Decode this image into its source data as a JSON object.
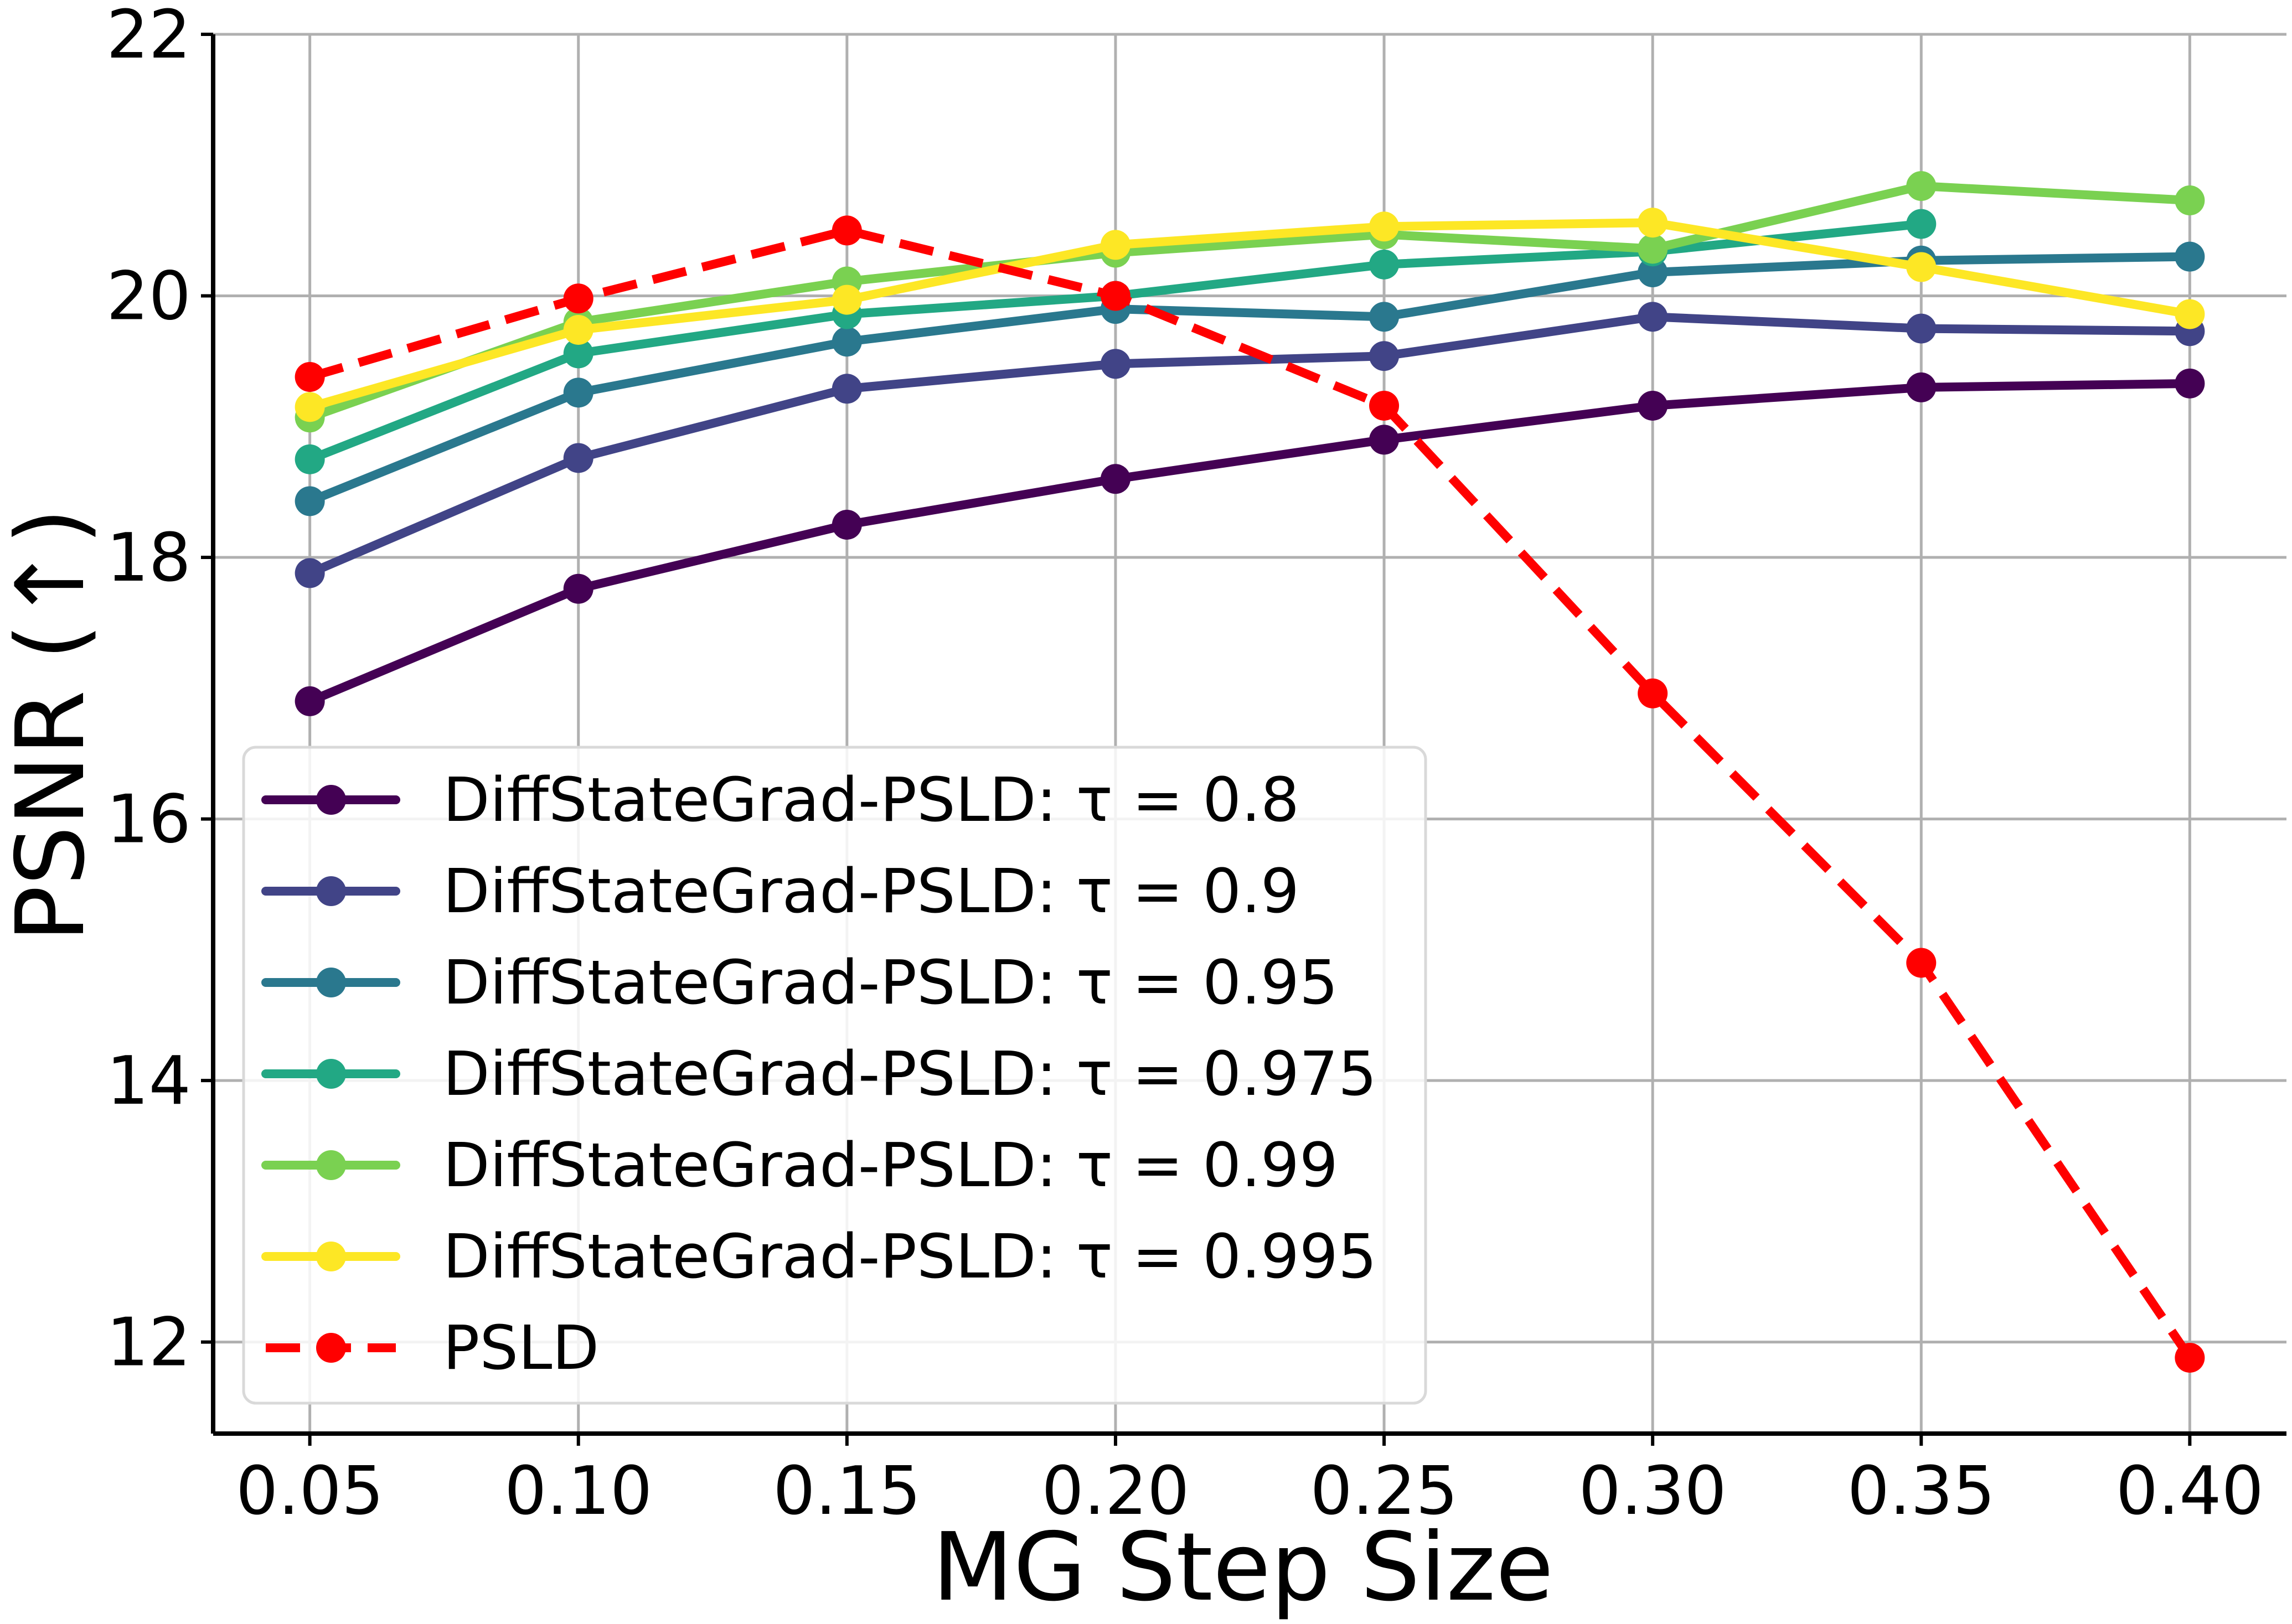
{
  "chart_data": {
    "type": "line",
    "title": "",
    "xlabel": "MG Step Size",
    "ylabel": "PSNR (↑)",
    "x": [
      0.05,
      0.1,
      0.15,
      0.2,
      0.25,
      0.3,
      0.35,
      0.4
    ],
    "x_tick_labels": [
      "0.05",
      "0.10",
      "0.15",
      "0.20",
      "0.25",
      "0.30",
      "0.35",
      "0.40"
    ],
    "y_ticks": [
      12,
      14,
      16,
      18,
      20,
      22
    ],
    "y_tick_labels": [
      "12",
      "14",
      "16",
      "18",
      "20",
      "22"
    ],
    "xlim": [
      0.032,
      0.418
    ],
    "ylim": [
      11.3,
      22
    ],
    "grid": true,
    "legend_position": "lower-left",
    "series": [
      {
        "name": "DiffStateGrad-PSLD: τ = 0.8",
        "color": "#440154",
        "dashed": false,
        "values": [
          16.9,
          17.76,
          18.25,
          18.6,
          18.9,
          19.16,
          19.3,
          19.33
        ]
      },
      {
        "name": "DiffStateGrad-PSLD: τ = 0.9",
        "color": "#414487",
        "dashed": false,
        "values": [
          17.88,
          18.76,
          19.29,
          19.48,
          19.54,
          19.84,
          19.75,
          19.73
        ]
      },
      {
        "name": "DiffStateGrad-PSLD: τ = 0.95",
        "color": "#2a788e",
        "dashed": false,
        "values": [
          18.43,
          19.26,
          19.65,
          19.9,
          19.84,
          20.18,
          20.27,
          20.3
        ]
      },
      {
        "name": "DiffStateGrad-PSLD: τ = 0.975",
        "color": "#22a884",
        "dashed": false,
        "values": [
          18.75,
          19.56,
          19.86,
          20.0,
          20.24,
          20.34,
          20.55,
          null
        ]
      },
      {
        "name": "DiffStateGrad-PSLD: τ = 0.99",
        "color": "#7ad151",
        "dashed": false,
        "values": [
          19.07,
          19.8,
          20.11,
          20.33,
          20.47,
          20.36,
          20.84,
          20.73
        ]
      },
      {
        "name": "DiffStateGrad-PSLD: τ = 0.995",
        "color": "#fde725",
        "dashed": false,
        "values": [
          19.15,
          19.74,
          19.97,
          20.39,
          20.53,
          20.56,
          20.22,
          19.86
        ]
      },
      {
        "name": "PSLD",
        "color": "#ff0000",
        "dashed": true,
        "values": [
          19.38,
          19.98,
          20.5,
          20.0,
          19.16,
          16.96,
          14.9,
          11.88
        ]
      }
    ]
  }
}
